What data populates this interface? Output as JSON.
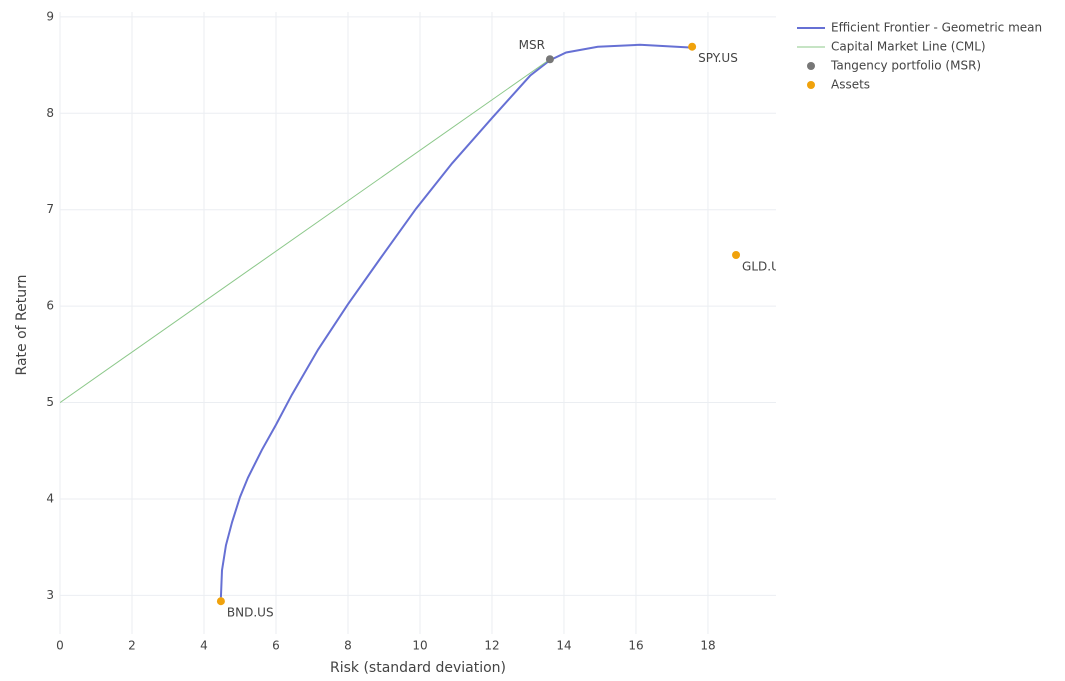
{
  "chart_data": {
    "type": "scatter",
    "x_label": "Risk (standard deviation)",
    "y_label": "Rate of Return",
    "xlim": [
      0,
      19.89
    ],
    "ylim": [
      2.6,
      9.05
    ],
    "xticks": [
      0,
      2,
      4,
      6,
      8,
      10,
      12,
      14,
      16,
      18
    ],
    "yticks": [
      3,
      4,
      5,
      6,
      7,
      8,
      9
    ],
    "grid": true,
    "legend": "right",
    "series": [
      {
        "name": "Efficient Frontier - Geometric mean",
        "type": "line",
        "color": "#6670d4",
        "x": [
          4.47,
          4.5,
          4.61,
          4.78,
          5.0,
          5.22,
          5.61,
          6.0,
          6.44,
          7.17,
          8.0,
          8.89,
          9.89,
          10.89,
          12.0,
          13.06,
          13.61,
          14.06,
          14.94,
          16.11,
          17.56
        ],
        "values": [
          2.98,
          3.26,
          3.52,
          3.76,
          4.02,
          4.22,
          4.51,
          4.77,
          5.08,
          5.55,
          6.02,
          6.49,
          7.01,
          7.48,
          7.95,
          8.39,
          8.55,
          8.63,
          8.69,
          8.71,
          8.68
        ]
      },
      {
        "name": "Capital Market Line (CML)",
        "type": "line",
        "color": "#8cc88a",
        "x": [
          0,
          13.61
        ],
        "values": [
          5.0,
          8.56
        ]
      },
      {
        "name": "Tangency portfolio (MSR)",
        "type": "markers",
        "color": "#777777",
        "x": [
          13.61
        ],
        "values": [
          8.56
        ],
        "labels": [
          "MSR"
        ]
      },
      {
        "name": "Assets",
        "type": "markers",
        "color": "#f0a20c",
        "x": [
          4.47,
          17.56,
          18.78
        ],
        "values": [
          2.94,
          8.69,
          6.53
        ],
        "labels": [
          "BND.US",
          "SPY.US",
          "GLD.US"
        ]
      }
    ]
  }
}
